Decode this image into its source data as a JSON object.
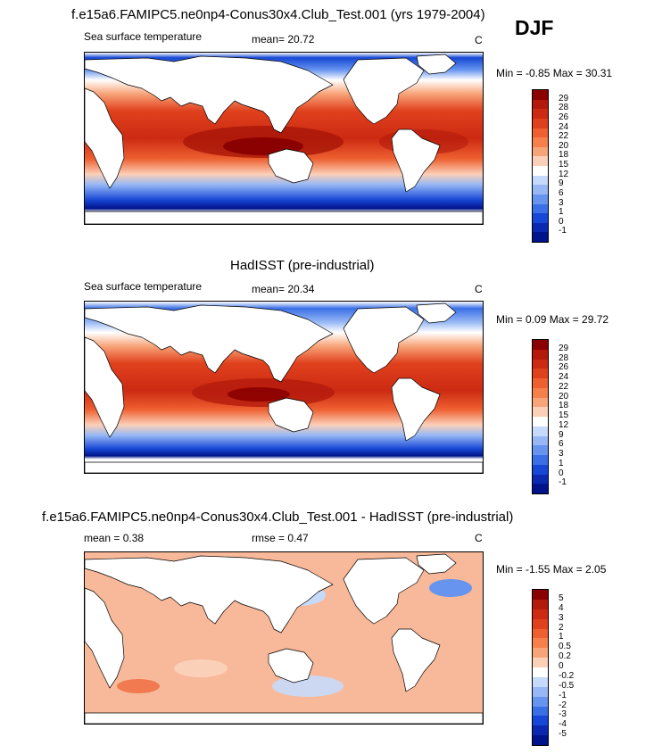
{
  "season": "DJF",
  "panels": [
    {
      "id": "model",
      "title": "f.e15a6.FAMIPC5.ne0np4-Conus30x4.Club_Test.001 (yrs 1979-2004)",
      "left_label": "Sea surface temperature",
      "center_label": "mean=  20.72",
      "units": "C",
      "minmax": "Min =  -0.85 Max =  30.31",
      "levels": [
        "29",
        "28",
        "26",
        "24",
        "22",
        "20",
        "18",
        "15",
        "12",
        "9",
        "6",
        "3",
        "1",
        "0",
        "-1"
      ],
      "colors": [
        "#8b0000",
        "#b41a0c",
        "#cc2a12",
        "#e0411d",
        "#ee6030",
        "#f5804c",
        "#f8a479",
        "#fbd0b9",
        "#ffffff",
        "#c6dafb",
        "#97b8f5",
        "#6694ef",
        "#3a6fe6",
        "#1747d6",
        "#0a29b0",
        "#00138a"
      ]
    },
    {
      "id": "obs",
      "title": "HadISST (pre-industrial)",
      "left_label": "Sea surface temperature",
      "center_label": "mean=  20.34",
      "units": "C",
      "minmax": "Min =  0.09 Max =  29.72",
      "levels": [
        "29",
        "28",
        "26",
        "24",
        "22",
        "20",
        "18",
        "15",
        "12",
        "9",
        "6",
        "3",
        "1",
        "0",
        "-1"
      ],
      "colors": [
        "#8b0000",
        "#b41a0c",
        "#cc2a12",
        "#e0411d",
        "#ee6030",
        "#f5804c",
        "#f8a479",
        "#fbd0b9",
        "#ffffff",
        "#c6dafb",
        "#97b8f5",
        "#6694ef",
        "#3a6fe6",
        "#1747d6",
        "#0a29b0",
        "#00138a"
      ]
    },
    {
      "id": "diff",
      "title": "f.e15a6.FAMIPC5.ne0np4-Conus30x4.Club_Test.001 - HadISST (pre-industrial)",
      "left_label": "mean =   0.38",
      "center_label": "rmse =   0.47",
      "units": "C",
      "minmax": "Min =  -1.55 Max =   2.05",
      "levels": [
        "5",
        "4",
        "3",
        "2",
        "1",
        "0.5",
        "0.2",
        "0",
        "-0.2",
        "-0.5",
        "-1",
        "-2",
        "-3",
        "-4",
        "-5"
      ],
      "colors": [
        "#8b0000",
        "#b41a0c",
        "#cc2a12",
        "#e0411d",
        "#ee6030",
        "#f5804c",
        "#f8a479",
        "#fbd0b9",
        "#ffffff",
        "#c6dafb",
        "#97b8f5",
        "#6694ef",
        "#3a6fe6",
        "#1747d6",
        "#0a29b0",
        "#00138a"
      ]
    }
  ]
}
